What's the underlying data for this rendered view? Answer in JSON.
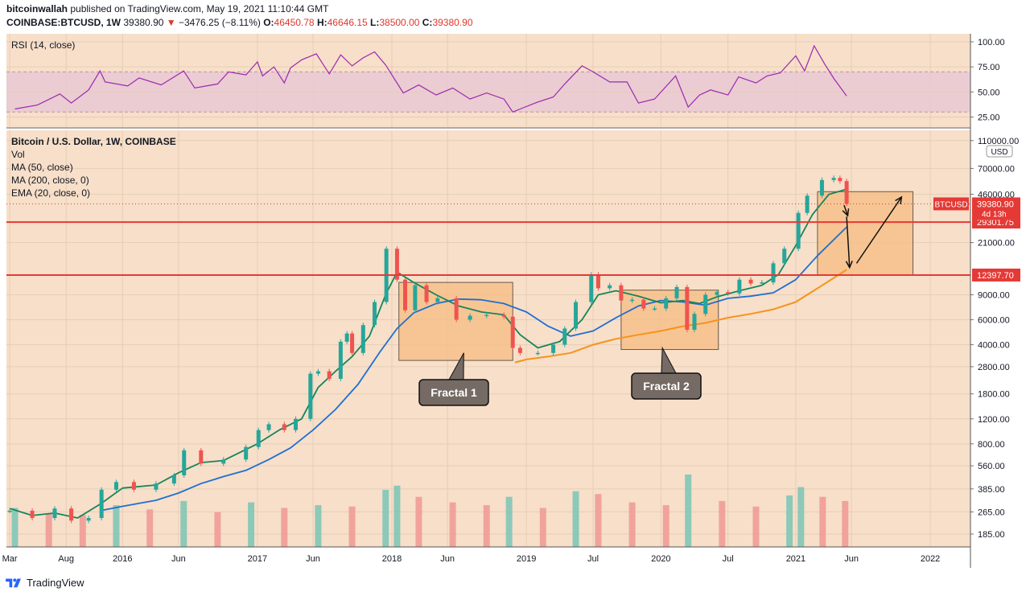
{
  "header": {
    "publisher": "bitcoinwallah",
    "published_text": "published on TradingView.com, May 19, 2021 11:10:44 GMT",
    "symbol": "COINBASE:BTCUSD, 1W",
    "last_price": "39380.90",
    "change_arrow": "▼",
    "change": "−3476.25 (−8.11%)",
    "open_label": "O:",
    "open": "46450.78",
    "high_label": "H:",
    "high": "46646.15",
    "low_label": "L:",
    "low": "38500.00",
    "close_label": "C:",
    "close": "39380.90"
  },
  "footer": {
    "brand": "TradingView",
    "icon": "tradingview-logo-icon"
  },
  "colors": {
    "background": "#f7dfc9",
    "grid": "#e6cdb6",
    "rsi_line": "#9c27b0",
    "rsi_band": "#e8c9d4",
    "ma50": "#16845c",
    "ema20": "#1e6fd1",
    "ma200": "#f7931a",
    "candle_up": "#26a69a",
    "candle_down": "#ef5350",
    "volume_up": "#80c6b7",
    "volume_down": "#f09c96",
    "resistance": "#e53935",
    "fractal_box": "#f8bd82",
    "callout_fill": "#756b64"
  },
  "chart_data": [
    {
      "type": "line",
      "title": "RSI (14, close)",
      "x_axis": "weekly time, Mar 2015 – May 2021",
      "y_ticks": [
        100,
        75,
        50,
        25
      ],
      "ylim": [
        15,
        108
      ],
      "band": {
        "lower": 30,
        "upper": 70
      },
      "series": [
        {
          "name": "RSI",
          "x": [
            "2015-03-15",
            "2015-05-15",
            "2015-07-15",
            "2015-08-15",
            "2015-10-01",
            "2015-11-01",
            "2015-11-15",
            "2016-01-15",
            "2016-02-15",
            "2016-04-15",
            "2016-06-15",
            "2016-07-15",
            "2016-09-15",
            "2016-10-15",
            "2016-12-01",
            "2017-01-01",
            "2017-01-15",
            "2017-02-15",
            "2017-03-15",
            "2017-04-01",
            "2017-05-01",
            "2017-06-10",
            "2017-07-15",
            "2017-08-15",
            "2017-09-15",
            "2017-10-15",
            "2017-11-15",
            "2017-12-15",
            "2018-02-01",
            "2018-03-15",
            "2018-05-01",
            "2018-06-15",
            "2018-08-01",
            "2018-09-15",
            "2018-11-01",
            "2018-11-25",
            "2018-12-15",
            "2019-02-01",
            "2019-03-15",
            "2019-04-15",
            "2019-06-01",
            "2019-07-01",
            "2019-08-15",
            "2019-10-01",
            "2019-11-01",
            "2019-12-15",
            "2020-02-10",
            "2020-03-15",
            "2020-04-15",
            "2020-05-15",
            "2020-07-01",
            "2020-07-30",
            "2020-09-15",
            "2020-10-15",
            "2020-11-20",
            "2021-01-01",
            "2021-01-25",
            "2021-02-20",
            "2021-03-20",
            "2021-04-15",
            "2021-05-19"
          ],
          "values": [
            33,
            37,
            48,
            39,
            52,
            71,
            60,
            56,
            64,
            57,
            71,
            54,
            58,
            70,
            67,
            80,
            66,
            75,
            59,
            74,
            82,
            88,
            68,
            87,
            76,
            84,
            90,
            77,
            49,
            57,
            47,
            54,
            43,
            49,
            43,
            30,
            33,
            40,
            45,
            58,
            76,
            70,
            60,
            60,
            39,
            43,
            66,
            35,
            47,
            52,
            47,
            65,
            59,
            66,
            69,
            86,
            71,
            96,
            78,
            63,
            46
          ]
        }
      ]
    },
    {
      "type": "line",
      "title": "Bitcoin / U.S. Dollar, 1W, COINBASE",
      "indicators": [
        "Vol",
        "MA (50, close)",
        "MA (200, close, 0)",
        "EMA (20, close, 0)"
      ],
      "y_scale": "log",
      "y_unit": "USD",
      "y_ticks": [
        110000,
        70000,
        46000,
        21000,
        9000,
        6000,
        4000,
        2800,
        1800,
        1200,
        800,
        560,
        385,
        265,
        185
      ],
      "y_tick_labels": [
        "110000.00",
        "70000.00",
        "46000.00",
        "21000.00",
        "9000.00",
        "6000.00",
        "4000.00",
        "2800.00",
        "1800.00",
        "1200.00",
        "800.00",
        "560.00",
        "385.00",
        "265.00",
        "185.00"
      ],
      "ylim": [
        150,
        130000
      ],
      "x_tick_labels": [
        {
          "label": "Mar",
          "date": "2015-03-01"
        },
        {
          "label": "Aug",
          "date": "2015-08-01"
        },
        {
          "label": "2016",
          "date": "2016-01-01"
        },
        {
          "label": "Jun",
          "date": "2016-06-01"
        },
        {
          "label": "2017",
          "date": "2017-01-01"
        },
        {
          "label": "Jun",
          "date": "2017-06-01"
        },
        {
          "label": "2018",
          "date": "2018-01-01"
        },
        {
          "label": "Jun",
          "date": "2018-06-01"
        },
        {
          "label": "2019",
          "date": "2019-01-01"
        },
        {
          "label": "Jul",
          "date": "2019-07-01"
        },
        {
          "label": "2020",
          "date": "2020-01-01"
        },
        {
          "label": "Jul",
          "date": "2020-07-01"
        },
        {
          "label": "2021",
          "date": "2021-01-01"
        },
        {
          "label": "Jun",
          "date": "2021-06-01"
        },
        {
          "label": "2022",
          "date": "2022-01-01"
        }
      ],
      "x_range": [
        "2015-02-20",
        "2022-04-20"
      ],
      "series": [
        {
          "name": "BTCUSD",
          "style": "candles",
          "x": [
            "2015-03-01",
            "2015-05-01",
            "2015-07-01",
            "2015-08-15",
            "2015-10-01",
            "2015-11-05",
            "2015-12-15",
            "2016-02-01",
            "2016-04-01",
            "2016-05-20",
            "2016-06-16",
            "2016-08-01",
            "2016-10-01",
            "2016-12-01",
            "2017-01-04",
            "2017-02-01",
            "2017-03-15",
            "2017-04-15",
            "2017-05-25",
            "2017-06-15",
            "2017-07-15",
            "2017-08-15",
            "2017-09-01",
            "2017-09-15",
            "2017-10-15",
            "2017-11-15",
            "2017-12-17",
            "2018-01-15",
            "2018-02-06",
            "2018-03-05",
            "2018-04-05",
            "2018-05-05",
            "2018-06-25",
            "2018-08-01",
            "2018-09-15",
            "2018-11-01",
            "2018-11-25",
            "2018-12-15",
            "2019-02-01",
            "2019-03-15",
            "2019-04-15",
            "2019-05-15",
            "2019-06-26",
            "2019-07-15",
            "2019-08-15",
            "2019-09-15",
            "2019-10-15",
            "2019-11-15",
            "2019-12-15",
            "2020-01-15",
            "2020-02-13",
            "2020-03-12",
            "2020-04-01",
            "2020-05-01",
            "2020-06-01",
            "2020-07-01",
            "2020-08-01",
            "2020-09-01",
            "2020-10-01",
            "2020-11-01",
            "2020-12-01",
            "2021-01-08",
            "2021-02-01",
            "2021-03-13",
            "2021-04-14",
            "2021-05-01",
            "2021-05-19"
          ],
          "values": [
            270,
            240,
            280,
            230,
            240,
            380,
            430,
            380,
            420,
            480,
            720,
            580,
            620,
            760,
            1000,
            1100,
            1000,
            1200,
            2500,
            2600,
            2300,
            4200,
            4800,
            3500,
            5500,
            8000,
            19000,
            11500,
            7000,
            10500,
            8000,
            8500,
            6000,
            6400,
            6500,
            6300,
            3800,
            3500,
            3500,
            4000,
            5200,
            8000,
            12500,
            10000,
            10500,
            8200,
            8300,
            7200,
            7200,
            8500,
            10200,
            5100,
            6600,
            9000,
            9400,
            9200,
            11500,
            10800,
            11000,
            15000,
            19000,
            34000,
            45000,
            58000,
            60000,
            57000,
            39380.9
          ]
        },
        {
          "name": "EMA (20, close, 0)",
          "x": [
            "2015-03-01",
            "2015-05-01",
            "2015-07-01",
            "2015-09-01",
            "2015-11-01",
            "2016-01-01",
            "2016-04-01",
            "2016-06-01",
            "2016-08-01",
            "2016-10-01",
            "2017-01-01",
            "2017-03-01",
            "2017-05-01",
            "2017-06-15",
            "2017-08-01",
            "2017-09-15",
            "2017-11-01",
            "2017-12-15",
            "2018-01-15",
            "2018-03-01",
            "2018-05-01",
            "2018-07-01",
            "2018-09-01",
            "2018-11-01",
            "2018-12-15",
            "2019-02-01",
            "2019-04-01",
            "2019-06-01",
            "2019-07-15",
            "2019-09-01",
            "2019-11-01",
            "2020-01-01",
            "2020-03-01",
            "2020-04-15",
            "2020-06-01",
            "2020-08-01",
            "2020-10-01",
            "2020-11-15",
            "2021-01-01",
            "2021-02-15",
            "2021-04-01",
            "2021-05-19"
          ],
          "values": [
            280,
            250,
            260,
            240,
            300,
            390,
            410,
            500,
            590,
            610,
            800,
            1000,
            1200,
            2000,
            2600,
            3300,
            4600,
            9000,
            13000,
            11000,
            9000,
            7500,
            6800,
            6500,
            4700,
            3800,
            4200,
            6000,
            9000,
            9600,
            8800,
            7900,
            8200,
            7800,
            8700,
            9600,
            10500,
            12500,
            20000,
            33000,
            46000,
            50000
          ]
        },
        {
          "name": "MA (50, close)",
          "x": [
            "2015-11-01",
            "2016-01-01",
            "2016-04-01",
            "2016-06-01",
            "2016-08-01",
            "2016-10-01",
            "2016-12-01",
            "2017-02-01",
            "2017-04-01",
            "2017-06-01",
            "2017-08-01",
            "2017-10-01",
            "2017-12-01",
            "2018-01-15",
            "2018-03-01",
            "2018-05-01",
            "2018-07-01",
            "2018-09-01",
            "2018-11-01",
            "2019-01-01",
            "2019-03-01",
            "2019-05-01",
            "2019-07-01",
            "2019-09-01",
            "2019-11-01",
            "2020-01-01",
            "2020-03-01",
            "2020-05-01",
            "2020-07-01",
            "2020-09-01",
            "2020-11-01",
            "2021-01-01",
            "2021-03-01",
            "2021-05-19"
          ],
          "values": [
            270,
            290,
            320,
            360,
            420,
            470,
            520,
            620,
            750,
            1000,
            1400,
            2100,
            3600,
            5200,
            6700,
            7800,
            8400,
            8300,
            7800,
            6800,
            5400,
            4600,
            5000,
            6200,
            7500,
            8200,
            8000,
            7600,
            8500,
            8800,
            9300,
            11500,
            17000,
            27000
          ]
        },
        {
          "name": "MA (200, close, 0)",
          "x": [
            "2018-12-01",
            "2019-01-01",
            "2019-03-01",
            "2019-05-01",
            "2019-07-01",
            "2019-09-01",
            "2019-11-01",
            "2020-01-01",
            "2020-03-01",
            "2020-05-01",
            "2020-07-01",
            "2020-09-01",
            "2020-11-01",
            "2021-01-01",
            "2021-03-01",
            "2021-05-19"
          ],
          "values": [
            3000,
            3150,
            3300,
            3500,
            4000,
            4400,
            4700,
            5000,
            5400,
            5700,
            6200,
            6600,
            7100,
            8000,
            10000,
            13500
          ]
        },
        {
          "name": "Vol",
          "style": "bars",
          "x": [
            "2015-03",
            "2015-06",
            "2015-09",
            "2015-12",
            "2016-03",
            "2016-06",
            "2016-09",
            "2016-12",
            "2017-03",
            "2017-06",
            "2017-09",
            "2017-12",
            "2018-01",
            "2018-03",
            "2018-06",
            "2018-09",
            "2018-11",
            "2019-02",
            "2019-05",
            "2019-07",
            "2019-10",
            "2020-01",
            "2020-03",
            "2020-06",
            "2020-09",
            "2020-12",
            "2021-01",
            "2021-03",
            "2021-05"
          ],
          "values": [
            280,
            240,
            230,
            300,
            270,
            330,
            250,
            320,
            280,
            300,
            290,
            410,
            440,
            360,
            320,
            300,
            360,
            280,
            400,
            380,
            320,
            300,
            520,
            330,
            290,
            370,
            430,
            360,
            330
          ]
        }
      ],
      "horizontal_levels": [
        {
          "value": 29301.75,
          "label": "29301.75"
        },
        {
          "value": 12397.7,
          "label": "12397.70"
        }
      ],
      "last_price_tag": {
        "symbol": "BTCUSD",
        "value": "39380.90",
        "countdown": "4d 13h"
      },
      "annotations": [
        {
          "label": "Fractal 1",
          "x_range": [
            "2018-01-20",
            "2018-11-25"
          ],
          "y_range": [
            3100,
            11000
          ]
        },
        {
          "label": "Fractal 2",
          "x_range": [
            "2019-09-15",
            "2020-06-05"
          ],
          "y_range": [
            3700,
            9700
          ]
        },
        {
          "label": "",
          "x_range": [
            "2021-03-01",
            "2021-11-15"
          ],
          "y_range": [
            12400,
            48000
          ]
        }
      ],
      "projection_arrows": [
        {
          "x": [
            "2021-05-12",
            "2021-05-22"
          ],
          "y": [
            38500,
            32500
          ]
        },
        {
          "x": [
            "2021-05-19",
            "2021-05-27"
          ],
          "y": [
            32000,
            14000
          ]
        },
        {
          "x": [
            "2021-06-15",
            "2021-10-15"
          ],
          "y": [
            15000,
            44000
          ]
        }
      ]
    }
  ]
}
